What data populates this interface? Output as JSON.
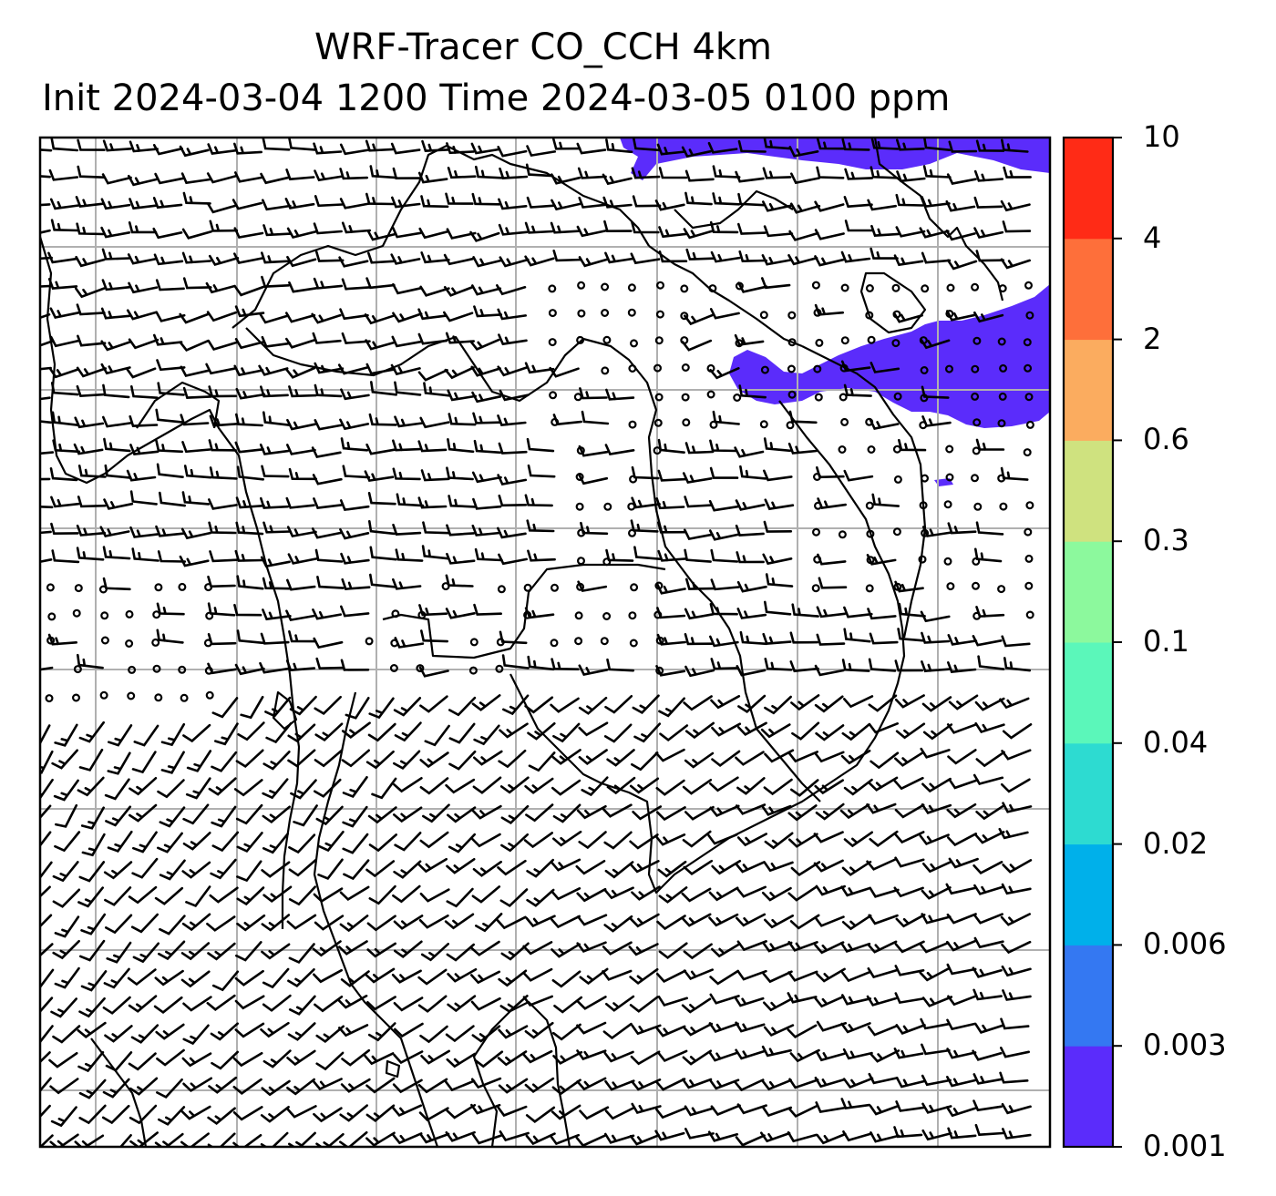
{
  "title": {
    "line1": "WRF-Tracer CO_CCH 4km",
    "line2": "Init 2024-03-04 1200 Time 2024-03-05 0100 ppm"
  },
  "colorbar": {
    "levels": [
      "0.001",
      "0.003",
      "0.006",
      "0.02",
      "0.04",
      "0.1",
      "0.3",
      "0.6",
      "2",
      "4",
      "10"
    ],
    "colors": [
      "#5b2cfb",
      "#3478f2",
      "#00b0ea",
      "#2ddbd1",
      "#5bf7ba",
      "#8cf99d",
      "#cfe27f",
      "#fbac5f",
      "#fe6f3a",
      "#ff2b16"
    ]
  },
  "map": {
    "field": "CO_CCH tracer",
    "gridlines": true,
    "overlay": "wind barbs",
    "plume_color": "#5b2cfb"
  }
}
